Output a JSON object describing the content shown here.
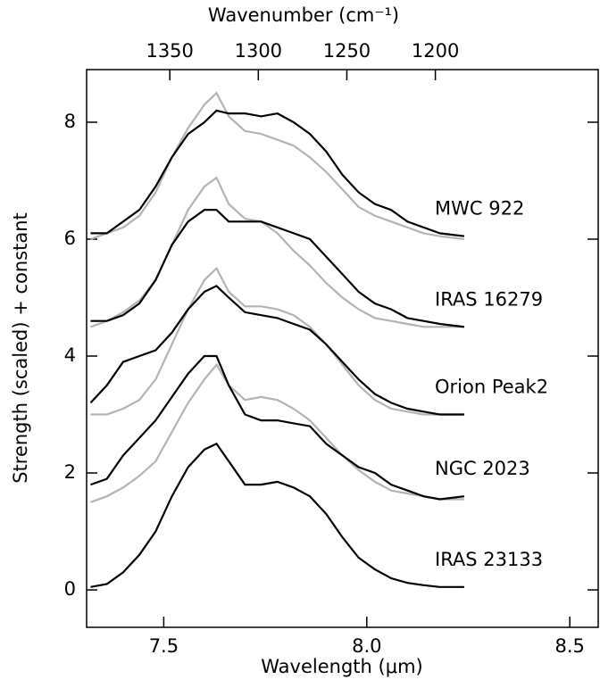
{
  "chart_data": {
    "type": "line",
    "xlabel": "Wavelength (μm)",
    "x2label": "Wavenumber (cm⁻¹)",
    "ylabel": "Strength (scaled) + constant",
    "x": [
      7.32,
      7.36,
      7.4,
      7.44,
      7.48,
      7.52,
      7.56,
      7.6,
      7.63,
      7.66,
      7.7,
      7.74,
      7.78,
      7.82,
      7.86,
      7.9,
      7.94,
      7.98,
      8.02,
      8.06,
      8.1,
      8.14,
      8.18,
      8.24
    ],
    "xlim": [
      7.31,
      8.57
    ],
    "xticks": [
      7.5,
      {
        "value": 8.0,
        "label": "8.0"
      },
      8.5
    ],
    "x2lim": [
      1397,
      1108
    ],
    "x2ticks": [
      1350,
      1300,
      1250,
      1200
    ],
    "ylim": [
      -0.64,
      8.9
    ],
    "yticks": [
      0,
      2,
      4,
      6,
      8
    ],
    "series": [
      {
        "name": "MWC 922",
        "color": "#000000",
        "values": [
          6.1,
          6.1,
          6.3,
          6.5,
          6.9,
          7.4,
          7.8,
          8.0,
          8.2,
          8.15,
          8.15,
          8.1,
          8.15,
          8.0,
          7.8,
          7.5,
          7.1,
          6.8,
          6.6,
          6.5,
          6.3,
          6.2,
          6.1,
          6.05
        ]
      },
      {
        "color": "#b4b4b4",
        "values": [
          6.0,
          6.1,
          6.2,
          6.4,
          6.8,
          7.4,
          7.9,
          8.3,
          8.5,
          8.1,
          7.85,
          7.8,
          7.7,
          7.6,
          7.4,
          7.15,
          6.85,
          6.55,
          6.4,
          6.3,
          6.2,
          6.1,
          6.05,
          6.0
        ]
      },
      {
        "name": "IRAS 16279",
        "color": "#000000",
        "values": [
          4.6,
          4.6,
          4.7,
          4.9,
          5.3,
          5.9,
          6.3,
          6.5,
          6.5,
          6.3,
          6.3,
          6.3,
          6.2,
          6.1,
          6.0,
          5.7,
          5.4,
          5.1,
          4.9,
          4.8,
          4.65,
          4.6,
          4.55,
          4.5
        ]
      },
      {
        "color": "#b4b4b4",
        "values": [
          4.5,
          4.6,
          4.75,
          4.95,
          5.3,
          5.9,
          6.5,
          6.9,
          7.05,
          6.6,
          6.35,
          6.3,
          6.1,
          5.8,
          5.55,
          5.25,
          5.0,
          4.8,
          4.65,
          4.6,
          4.55,
          4.5,
          4.5,
          4.5
        ]
      },
      {
        "name": "Orion Peak2",
        "color": "#000000",
        "values": [
          3.2,
          3.5,
          3.9,
          4.0,
          4.1,
          4.4,
          4.8,
          5.1,
          5.2,
          5.0,
          4.75,
          4.7,
          4.65,
          4.55,
          4.45,
          4.2,
          3.9,
          3.6,
          3.35,
          3.2,
          3.1,
          3.05,
          3.0,
          3.0
        ]
      },
      {
        "color": "#b4b4b4",
        "values": [
          3.0,
          3.0,
          3.1,
          3.25,
          3.6,
          4.2,
          4.8,
          5.3,
          5.5,
          5.1,
          4.85,
          4.85,
          4.8,
          4.7,
          4.5,
          4.2,
          3.85,
          3.5,
          3.25,
          3.1,
          3.05,
          3.0,
          3.0,
          3.0
        ]
      },
      {
        "name": "NGC 2023",
        "color": "#000000",
        "values": [
          1.8,
          1.9,
          2.3,
          2.6,
          2.9,
          3.3,
          3.7,
          4.0,
          4.0,
          3.5,
          3.0,
          2.9,
          2.9,
          2.85,
          2.8,
          2.5,
          2.3,
          2.1,
          2.0,
          1.8,
          1.7,
          1.6,
          1.55,
          1.6
        ]
      },
      {
        "color": "#b4b4b4",
        "values": [
          1.5,
          1.6,
          1.75,
          1.95,
          2.2,
          2.7,
          3.2,
          3.6,
          3.85,
          3.5,
          3.25,
          3.3,
          3.25,
          3.1,
          2.9,
          2.6,
          2.3,
          2.05,
          1.85,
          1.7,
          1.65,
          1.6,
          1.55,
          1.55
        ]
      },
      {
        "name": "IRAS 23133",
        "color": "#000000",
        "values": [
          0.05,
          0.1,
          0.3,
          0.6,
          1.0,
          1.6,
          2.1,
          2.4,
          2.5,
          2.2,
          1.8,
          1.8,
          1.85,
          1.75,
          1.6,
          1.3,
          0.9,
          0.55,
          0.35,
          0.2,
          0.12,
          0.08,
          0.05,
          0.05
        ]
      }
    ]
  }
}
